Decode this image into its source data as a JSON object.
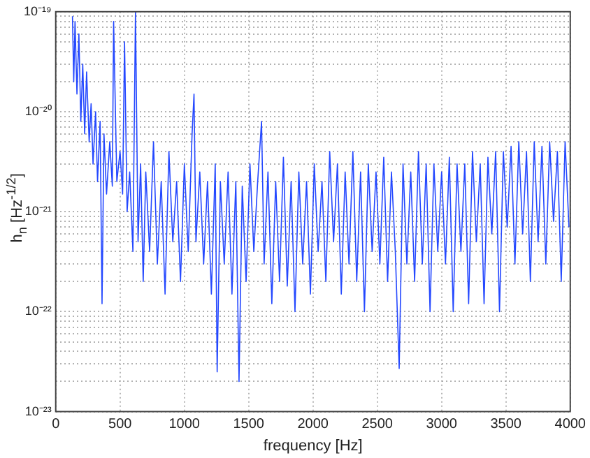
{
  "chart_data": {
    "type": "line",
    "xlabel": "frequency [Hz]",
    "ylabel": "h$_{n}$ [Hz$^{-1/2}$]",
    "x": [
      130,
      140,
      150,
      165,
      180,
      195,
      210,
      225,
      240,
      260,
      275,
      290,
      310,
      325,
      345,
      360,
      375,
      395,
      420,
      440,
      450,
      475,
      500,
      520,
      535,
      555,
      575,
      600,
      620,
      640,
      660,
      680,
      700,
      730,
      760,
      790,
      820,
      850,
      880,
      910,
      940,
      970,
      1000,
      1030,
      1060,
      1075,
      1090,
      1120,
      1150,
      1180,
      1210,
      1240,
      1255,
      1280,
      1310,
      1340,
      1370,
      1400,
      1425,
      1450,
      1480,
      1510,
      1540,
      1570,
      1600,
      1620,
      1650,
      1680,
      1710,
      1740,
      1770,
      1800,
      1830,
      1860,
      1890,
      1920,
      1950,
      1980,
      2010,
      2040,
      2070,
      2100,
      2130,
      2160,
      2190,
      2220,
      2250,
      2280,
      2310,
      2340,
      2370,
      2400,
      2430,
      2460,
      2490,
      2520,
      2550,
      2580,
      2610,
      2640,
      2670,
      2700,
      2730,
      2760,
      2790,
      2820,
      2850,
      2880,
      2910,
      2940,
      2970,
      3000,
      3030,
      3060,
      3090,
      3120,
      3150,
      3180,
      3210,
      3240,
      3270,
      3300,
      3330,
      3360,
      3390,
      3420,
      3450,
      3480,
      3510,
      3540,
      3570,
      3600,
      3630,
      3660,
      3690,
      3720,
      3750,
      3780,
      3810,
      3840,
      3870,
      3900,
      3930,
      3960,
      3990
    ],
    "series": [
      {
        "color": "#2448ff",
        "values": [
          9e-20,
          2e-20,
          8e-20,
          1.5e-20,
          6e-20,
          8e-21,
          3e-20,
          6e-21,
          2.5e-20,
          5e-21,
          1.2e-20,
          3e-21,
          1e-20,
          2e-21,
          8e-21,
          1.2e-22,
          6e-21,
          1.5e-21,
          5e-21,
          1.8e-21,
          8e-20,
          2e-21,
          4e-21,
          1.5e-21,
          5e-20,
          1e-21,
          2.5e-21,
          4e-22,
          1e-19,
          5e-22,
          3e-21,
          2e-22,
          2.5e-21,
          4e-22,
          5e-21,
          3e-22,
          2e-21,
          1.5e-22,
          4e-21,
          5e-22,
          2e-21,
          2e-22,
          3e-21,
          4e-22,
          6e-21,
          1.5e-20,
          5e-22,
          2.5e-21,
          3e-22,
          2e-21,
          1.5e-22,
          3e-21,
          2.5e-23,
          2e-21,
          3e-22,
          2.5e-21,
          1.5e-22,
          2e-21,
          2e-23,
          1.8e-21,
          2e-22,
          3e-21,
          4e-22,
          2e-21,
          8e-21,
          3e-22,
          2.5e-21,
          1.2e-22,
          2e-21,
          2e-22,
          3.5e-21,
          1.8e-22,
          2e-21,
          1e-22,
          2.5e-21,
          3e-22,
          2e-21,
          1.5e-22,
          3e-21,
          4e-22,
          2e-21,
          2e-22,
          4e-21,
          5e-22,
          3e-21,
          1.5e-22,
          2.5e-21,
          3e-22,
          4e-21,
          2e-22,
          2.5e-21,
          1e-22,
          3e-21,
          4e-22,
          2.5e-21,
          3e-22,
          3.5e-21,
          2e-22,
          2.5e-21,
          4e-22,
          2.7e-23,
          3e-21,
          3e-22,
          2.5e-21,
          2e-22,
          4e-21,
          3e-22,
          3e-21,
          1e-22,
          3e-21,
          4e-22,
          2.5e-21,
          3e-22,
          3.5e-21,
          1e-22,
          3e-21,
          4e-22,
          3e-21,
          1.2e-22,
          4e-21,
          5e-22,
          3e-21,
          1.2e-22,
          3.5e-21,
          6e-22,
          4e-21,
          1e-22,
          4e-21,
          7e-22,
          4.5e-21,
          3e-22,
          5e-21,
          6e-22,
          4e-21,
          2e-22,
          5e-21,
          5e-22,
          4.5e-21,
          3e-22,
          5e-21,
          8e-22,
          4e-21,
          2e-22,
          5e-21,
          7e-22
        ]
      }
    ],
    "xlim": [
      0,
      4000
    ],
    "xticks": [
      0,
      500,
      1000,
      1500,
      2000,
      2500,
      3000,
      3500,
      4000
    ],
    "ylim": [
      1e-23,
      1e-19
    ],
    "log": "y",
    "grid": true,
    "marker": "none",
    "line_style": "solid",
    "yticks": [
      {
        "value": 1e-23,
        "label": "10⁻²³"
      },
      {
        "value": 2e-23,
        "label": null
      },
      {
        "value": 3e-23,
        "label": null
      },
      {
        "value": 4e-23,
        "label": null
      },
      {
        "value": 5e-23,
        "label": null
      },
      {
        "value": 6e-23,
        "label": null
      },
      {
        "value": 7e-23,
        "label": null
      },
      {
        "value": 8e-23,
        "label": null
      },
      {
        "value": 9e-23,
        "label": null
      },
      {
        "value": 1e-22,
        "label": "10⁻²²"
      },
      {
        "value": 2e-22,
        "label": null
      },
      {
        "value": 3e-22,
        "label": null
      },
      {
        "value": 4e-22,
        "label": null
      },
      {
        "value": 5e-22,
        "label": null
      },
      {
        "value": 6e-22,
        "label": null
      },
      {
        "value": 7e-22,
        "label": null
      },
      {
        "value": 8e-22,
        "label": null
      },
      {
        "value": 9e-22,
        "label": null
      },
      {
        "value": 1e-21,
        "label": "10⁻²¹"
      },
      {
        "value": 2e-21,
        "label": null
      },
      {
        "value": 3e-21,
        "label": null
      },
      {
        "value": 4e-21,
        "label": null
      },
      {
        "value": 5e-21,
        "label": null
      },
      {
        "value": 6e-21,
        "label": null
      },
      {
        "value": 7e-21,
        "label": null
      },
      {
        "value": 8e-21,
        "label": null
      },
      {
        "value": 9e-21,
        "label": null
      },
      {
        "value": 1e-20,
        "label": "10⁻²⁰"
      },
      {
        "value": 2e-20,
        "label": null
      },
      {
        "value": 3e-20,
        "label": null
      },
      {
        "value": 4e-20,
        "label": null
      },
      {
        "value": 5e-20,
        "label": null
      },
      {
        "value": 6e-20,
        "label": null
      },
      {
        "value": 7e-20,
        "label": null
      },
      {
        "value": 8e-20,
        "label": null
      },
      {
        "value": 9e-20,
        "label": null
      },
      {
        "value": 1e-19,
        "label": "10⁻¹⁹"
      }
    ]
  }
}
